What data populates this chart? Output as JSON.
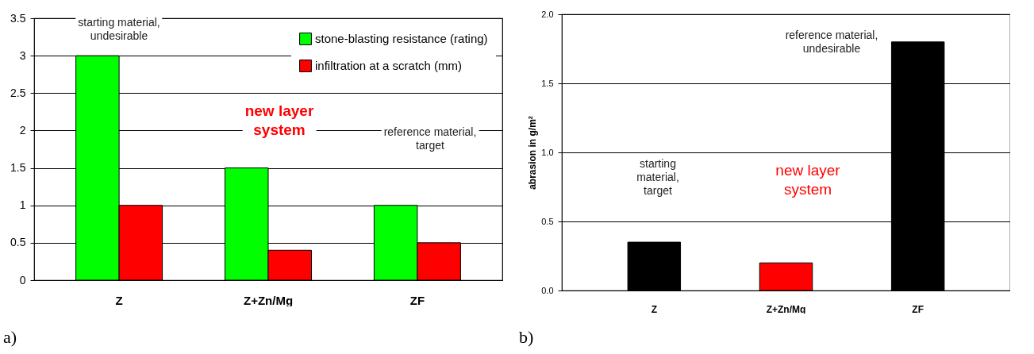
{
  "chart_data": [
    {
      "type": "bar",
      "categories": [
        "Z",
        "Z+Zn/Mg",
        "ZF"
      ],
      "series": [
        {
          "name": "stone-blasting resistance (rating)",
          "color": "#00ff00",
          "values": [
            3,
            1.5,
            1
          ]
        },
        {
          "name": "infiltration at a scratch (mm)",
          "color": "#ff0000",
          "values": [
            1,
            0.4,
            0.5
          ]
        }
      ],
      "ylim": [
        0,
        3.5
      ],
      "yticks": [
        0,
        0.5,
        1,
        1.5,
        2,
        2.5,
        3,
        3.5
      ],
      "grid": "y",
      "legend": "top right",
      "annotations": [
        "starting material,\nundesirable",
        "new layer\nsystem",
        "reference material,\ntarget",
        "a)"
      ]
    },
    {
      "type": "bar",
      "categories": [
        "Z",
        "Z+Zn/Mg",
        "ZF"
      ],
      "values": [
        0.35,
        0.2,
        1.8
      ],
      "colors": [
        "#000000",
        "#ff0000",
        "#000000"
      ],
      "ylabel": "abrasion in g/m²",
      "ylim": [
        0,
        2
      ],
      "yticks": [
        {
          "value": 0,
          "label": "0.0"
        },
        {
          "value": 0.5,
          "label": "0.5"
        },
        {
          "value": 1,
          "label": "1.0"
        },
        {
          "value": 1.5,
          "label": "1.5"
        },
        {
          "value": 2,
          "label": "2.0"
        }
      ],
      "grid": "y",
      "annotations": [
        "starting\nmaterial,\ntarget",
        "new layer\nsystem",
        "reference material,\nundesirable",
        "b)"
      ]
    }
  ]
}
